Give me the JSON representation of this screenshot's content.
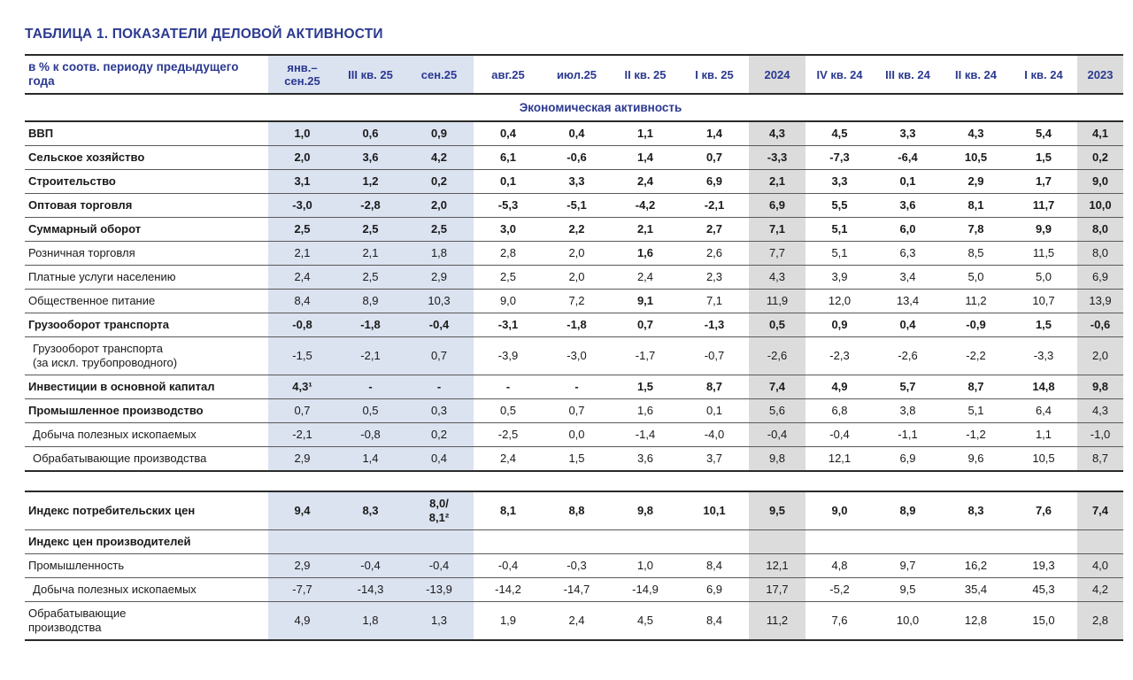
{
  "colors": {
    "accent_navy": "#2b3990",
    "column_highlight_blue": "#dbe2f0",
    "column_highlight_gray": "#dcdcdc"
  },
  "title": "ТАБЛИЦА 1. ПОКАЗАТЕЛИ ДЕЛОВОЙ АКТИВНОСТИ",
  "table": {
    "unit_header": "в % к соотв. периоду предыдущего года",
    "columns": [
      {
        "label": "янв.–\nсен.25",
        "bg": "blue"
      },
      {
        "label": "III кв. 25",
        "bg": "blue"
      },
      {
        "label": "сен.25",
        "bg": "blue"
      },
      {
        "label": "авг.25",
        "bg": "white"
      },
      {
        "label": "июл.25",
        "bg": "white"
      },
      {
        "label": "II кв. 25",
        "bg": "white"
      },
      {
        "label": "I кв. 25",
        "bg": "white"
      },
      {
        "label": "2024",
        "bg": "gray"
      },
      {
        "label": "IV кв. 24",
        "bg": "white"
      },
      {
        "label": "III кв. 24",
        "bg": "white"
      },
      {
        "label": "II кв. 24",
        "bg": "white"
      },
      {
        "label": "I кв. 24",
        "bg": "white"
      },
      {
        "label": "2023",
        "bg": "gray"
      }
    ],
    "section_economic_activity": "Экономическая активность",
    "block1_rows": [
      {
        "label": "ВВП",
        "style": "bold",
        "values": [
          "1,0",
          "0,6",
          "0,9",
          "0,4",
          "0,4",
          "1,1",
          "1,4",
          "4,3",
          "4,5",
          "3,3",
          "4,3",
          "5,4",
          "4,1"
        ]
      },
      {
        "label": "Сельское хозяйство",
        "style": "bold",
        "values": [
          "2,0",
          "3,6",
          "4,2",
          "6,1",
          "-0,6",
          "1,4",
          "0,7",
          "-3,3",
          "-7,3",
          "-6,4",
          "10,5",
          "1,5",
          "0,2"
        ]
      },
      {
        "label": "Строительство",
        "style": "bold",
        "values": [
          "3,1",
          "1,2",
          "0,2",
          "0,1",
          "3,3",
          "2,4",
          "6,9",
          "2,1",
          "3,3",
          "0,1",
          "2,9",
          "1,7",
          "9,0"
        ]
      },
      {
        "label": "Оптовая торговля",
        "style": "bold",
        "values": [
          "-3,0",
          "-2,8",
          "2,0",
          "-5,3",
          "-5,1",
          "-4,2",
          "-2,1",
          "6,9",
          "5,5",
          "3,6",
          "8,1",
          "11,7",
          "10,0"
        ]
      },
      {
        "label": "Суммарный оборот",
        "style": "bold",
        "values": [
          "2,5",
          "2,5",
          "2,5",
          "3,0",
          "2,2",
          "2,1",
          "2,7",
          "7,1",
          "5,1",
          "6,0",
          "7,8",
          "9,9",
          "8,0"
        ]
      },
      {
        "label": "Розничная торговля",
        "style": "normal",
        "bold_cols": [
          5
        ],
        "values": [
          "2,1",
          "2,1",
          "1,8",
          "2,8",
          "2,0",
          "1,6",
          "2,6",
          "7,7",
          "5,1",
          "6,3",
          "8,5",
          "11,5",
          "8,0"
        ]
      },
      {
        "label": "Платные услуги населению",
        "style": "normal",
        "values": [
          "2,4",
          "2,5",
          "2,9",
          "2,5",
          "2,0",
          "2,4",
          "2,3",
          "4,3",
          "3,9",
          "3,4",
          "5,0",
          "5,0",
          "6,9"
        ]
      },
      {
        "label": "Общественное питание",
        "style": "normal",
        "bold_cols": [
          5
        ],
        "values": [
          "8,4",
          "8,9",
          "10,3",
          "9,0",
          "7,2",
          "9,1",
          "7,1",
          "11,9",
          "12,0",
          "13,4",
          "11,2",
          "10,7",
          "13,9"
        ]
      },
      {
        "label": "Грузооборот транспорта",
        "style": "bold",
        "values": [
          "-0,8",
          "-1,8",
          "-0,4",
          "-3,1",
          "-1,8",
          "0,7",
          "-1,3",
          "0,5",
          "0,9",
          "0,4",
          "-0,9",
          "1,5",
          "-0,6"
        ]
      },
      {
        "label": "Грузооборот транспорта\n(за искл. трубопроводного)",
        "style": "normal",
        "indent": true,
        "values": [
          "-1,5",
          "-2,1",
          "0,7",
          "-3,9",
          "-3,0",
          "-1,7",
          "-0,7",
          "-2,6",
          "-2,3",
          "-2,6",
          "-2,2",
          "-3,3",
          "2,0"
        ]
      },
      {
        "label": "Инвестиции в основной капитал",
        "style": "bold",
        "values": [
          "4,3¹",
          "-",
          "-",
          "-",
          "-",
          "1,5",
          "8,7",
          "7,4",
          "4,9",
          "5,7",
          "8,7",
          "14,8",
          "9,8"
        ]
      },
      {
        "label": "Промышленное производство",
        "style": "label-bold",
        "values": [
          "0,7",
          "0,5",
          "0,3",
          "0,5",
          "0,7",
          "1,6",
          "0,1",
          "5,6",
          "6,8",
          "3,8",
          "5,1",
          "6,4",
          "4,3"
        ]
      },
      {
        "label": "Добыча полезных ископаемых",
        "style": "normal",
        "indent": true,
        "values": [
          "-2,1",
          "-0,8",
          "0,2",
          "-2,5",
          "0,0",
          "-1,4",
          "-4,0",
          "-0,4",
          "-0,4",
          "-1,1",
          "-1,2",
          "1,1",
          "-1,0"
        ]
      },
      {
        "label": "Обрабатывающие производства",
        "style": "normal",
        "indent": true,
        "values": [
          "2,9",
          "1,4",
          "0,4",
          "2,4",
          "1,5",
          "3,6",
          "3,7",
          "9,8",
          "12,1",
          "6,9",
          "9,6",
          "10,5",
          "8,7"
        ]
      }
    ],
    "block2_rows": [
      {
        "label": "Индекс потребительских цен",
        "style": "bold",
        "values": [
          "9,4",
          "8,3",
          "8,0/\n8,1²",
          "8,1",
          "8,8",
          "9,8",
          "10,1",
          "9,5",
          "9,0",
          "8,9",
          "8,3",
          "7,6",
          "7,4"
        ]
      },
      {
        "label": "Индекс цен производителей",
        "style": "label-bold",
        "values": [
          "",
          "",
          "",
          "",
          "",
          "",
          "",
          "",
          "",
          "",
          "",
          "",
          ""
        ]
      },
      {
        "label": "Промышленность",
        "style": "normal",
        "values": [
          "2,9",
          "-0,4",
          "-0,4",
          "-0,4",
          "-0,3",
          "1,0",
          "8,4",
          "12,1",
          "4,8",
          "9,7",
          "16,2",
          "19,3",
          "4,0"
        ]
      },
      {
        "label": "Добыча полезных ископаемых",
        "style": "normal",
        "indent": true,
        "values": [
          "-7,7",
          "-14,3",
          "-13,9",
          "-14,2",
          "-14,7",
          "-14,9",
          "6,9",
          "17,7",
          "-5,2",
          "9,5",
          "35,4",
          "45,3",
          "4,2"
        ]
      },
      {
        "label": "Обрабатывающие\nпроизводства",
        "style": "normal",
        "values": [
          "4,9",
          "1,8",
          "1,3",
          "1,9",
          "2,4",
          "4,5",
          "8,4",
          "11,2",
          "7,6",
          "10,0",
          "12,8",
          "15,0",
          "2,8"
        ]
      }
    ]
  }
}
